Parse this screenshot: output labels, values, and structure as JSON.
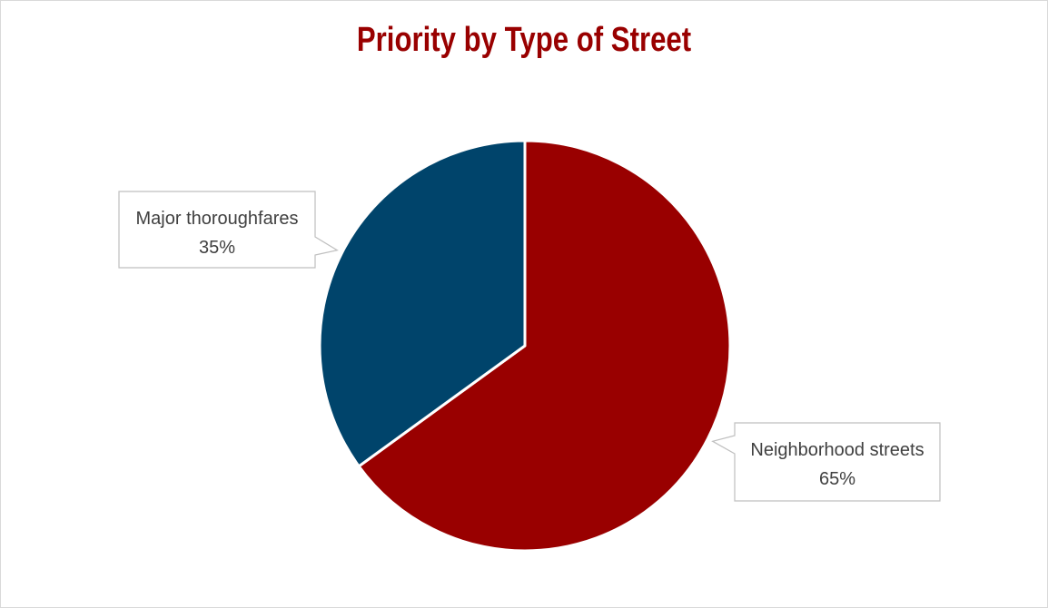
{
  "chart_data": {
    "type": "pie",
    "title": "Priority by Type of Street",
    "slices": [
      {
        "label": "Neighborhood streets",
        "value": 65,
        "value_label": "65%",
        "color": "#990000"
      },
      {
        "label": "Major thoroughfares",
        "value": 35,
        "value_label": "35%",
        "color": "#00446b"
      }
    ],
    "start_angle_deg": 0,
    "direction": "clockwise",
    "data_labels": "callout",
    "legend": "none"
  }
}
